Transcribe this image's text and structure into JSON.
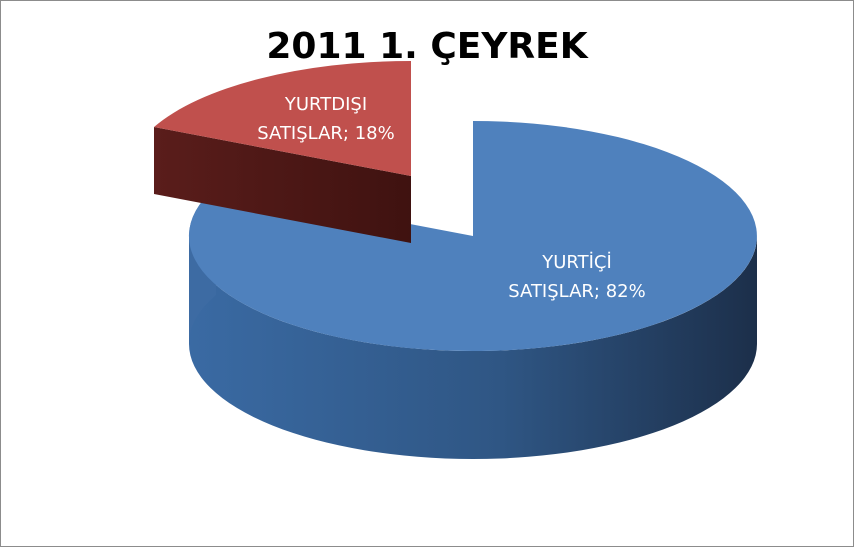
{
  "chart_data": {
    "type": "pie",
    "title": "2011 1. ÇEYREK",
    "three_d": true,
    "exploded": true,
    "slices": [
      {
        "label_line1": "YURTİÇİ",
        "label_line2": "SATIŞLAR; 82%",
        "name": "YURTİÇİ SATIŞLAR",
        "value": 82,
        "color": "#4f81bd"
      },
      {
        "label_line1": "YURTDIŞI",
        "label_line2": "SATIŞLAR; 18%",
        "name": "YURTDIŞI SATIŞLAR",
        "value": 18,
        "color": "#c0504d"
      }
    ],
    "legend": "none"
  }
}
